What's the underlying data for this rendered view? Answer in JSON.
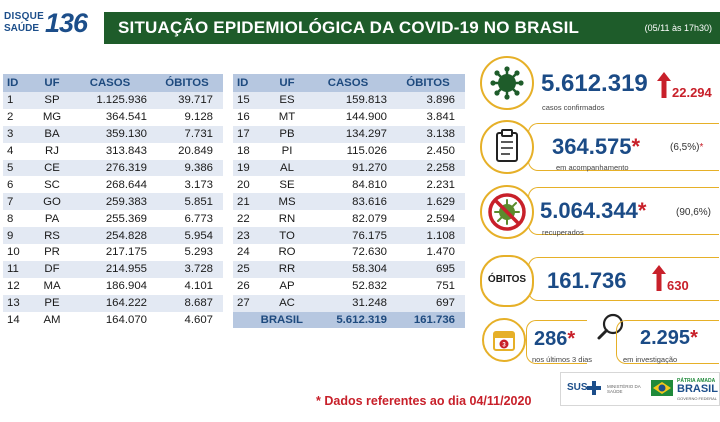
{
  "logo": {
    "line1": "DISQUE",
    "line2": "SAÚDE",
    "number": "136"
  },
  "header": {
    "title": "SITUAÇÃO EPIDEMIOLÓGICA DA COVID-19 NO BRASIL",
    "date": "(05/11 às 17h30)"
  },
  "table": {
    "headers": [
      "ID",
      "UF",
      "CASOS",
      "ÓBITOS"
    ],
    "left_rows": [
      [
        "1",
        "SP",
        "1.125.936",
        "39.717"
      ],
      [
        "2",
        "MG",
        "364.541",
        "9.128"
      ],
      [
        "3",
        "BA",
        "359.130",
        "7.731"
      ],
      [
        "4",
        "RJ",
        "313.843",
        "20.849"
      ],
      [
        "5",
        "CE",
        "276.319",
        "9.386"
      ],
      [
        "6",
        "SC",
        "268.644",
        "3.173"
      ],
      [
        "7",
        "GO",
        "259.383",
        "5.851"
      ],
      [
        "8",
        "PA",
        "255.369",
        "6.773"
      ],
      [
        "9",
        "RS",
        "254.828",
        "5.954"
      ],
      [
        "10",
        "PR",
        "217.175",
        "5.293"
      ],
      [
        "11",
        "DF",
        "214.955",
        "3.728"
      ],
      [
        "12",
        "MA",
        "186.904",
        "4.101"
      ],
      [
        "13",
        "PE",
        "164.222",
        "8.687"
      ],
      [
        "14",
        "AM",
        "164.070",
        "4.607"
      ]
    ],
    "right_rows": [
      [
        "15",
        "ES",
        "159.813",
        "3.896"
      ],
      [
        "16",
        "MT",
        "144.900",
        "3.841"
      ],
      [
        "17",
        "PB",
        "134.297",
        "3.138"
      ],
      [
        "18",
        "PI",
        "115.026",
        "2.450"
      ],
      [
        "19",
        "AL",
        "91.270",
        "2.258"
      ],
      [
        "20",
        "SE",
        "84.810",
        "2.231"
      ],
      [
        "21",
        "MS",
        "83.616",
        "1.629"
      ],
      [
        "22",
        "RN",
        "82.079",
        "2.594"
      ],
      [
        "23",
        "TO",
        "76.175",
        "1.108"
      ],
      [
        "24",
        "RO",
        "72.630",
        "1.470"
      ],
      [
        "25",
        "RR",
        "58.304",
        "695"
      ],
      [
        "26",
        "AP",
        "52.832",
        "751"
      ],
      [
        "27",
        "AC",
        "31.248",
        "697"
      ]
    ],
    "total": {
      "label": "BRASIL",
      "casos": "5.612.319",
      "obitos": "161.736"
    }
  },
  "stats": {
    "confirmed": {
      "value": "5.612.319",
      "delta": "22.294",
      "label": "casos confirmados"
    },
    "monitoring": {
      "value": "364.575",
      "star": "*",
      "pct": "(6,5%)",
      "pct_star": "*",
      "label": "em acompanhamento"
    },
    "recovered": {
      "value": "5.064.344",
      "star": "*",
      "pct": "(90,6%)",
      "label": "recuperados"
    },
    "deaths": {
      "badge": "ÓBITOS",
      "value": "161.736",
      "delta": "630"
    },
    "last3days": {
      "value": "286",
      "star": "*",
      "label": "nos últimos 3 dias"
    },
    "investigating": {
      "value": "2.295",
      "star": "*",
      "label": "em investigação"
    }
  },
  "footnote": "* Dados referentes ao dia 04/11/2020",
  "footer": {
    "sus": "SUS",
    "ministry": "MINISTÉRIO DA SAÚDE",
    "gov_line1": "PÁTRIA AMADA",
    "gov_line2": "BRASIL",
    "gov_line3": "GOVERNO FEDERAL"
  },
  "colors": {
    "header_bg": "#1e5c2a",
    "accent": "#e6b028",
    "number": "#1b4b86",
    "alert": "#c8202a",
    "table_header": "#b6c7e0",
    "row_alt": "#e3e9f3"
  }
}
